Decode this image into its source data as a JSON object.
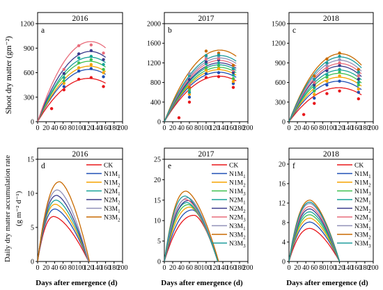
{
  "figure": {
    "top_ylabel": "Shoot dry matter (gm⁻²)",
    "bottom_ylabel_line1": "Daily dry matter accumulation rate",
    "bottom_ylabel_line2": "(g m⁻² d⁻¹)",
    "xlabel": "Days after emergence (d)"
  },
  "colors": {
    "CK": "#e8161a",
    "N1M1": "#1f4fb5",
    "N1M2": "#f5a300",
    "N1M3": "#3fbf4f",
    "N2M1": "#17a398",
    "N2M2": "#3a3a8c",
    "N2M3": "#e86b7a",
    "N3M1": "#9090b8",
    "N3M2": "#c86a00",
    "N3M3": "#1a9a9a"
  },
  "chart_data": [
    {
      "id": "a",
      "panel_letter": "a",
      "title": "2016",
      "type": "line",
      "xticks": [
        "0",
        "20",
        "40",
        "60",
        "80",
        "100",
        "120",
        "140",
        "160",
        "180",
        "200"
      ],
      "yticks": [
        "0",
        "300",
        "600",
        "900",
        "1200"
      ],
      "xlim": [
        0,
        200
      ],
      "ylim": [
        0,
        1200
      ],
      "series": [
        {
          "key": "CK",
          "peak_x": 120,
          "peak_y": 530,
          "x_end": 160
        },
        {
          "key": "N1M1",
          "peak_x": 122,
          "peak_y": 640,
          "x_end": 160
        },
        {
          "key": "N1M2",
          "peak_x": 122,
          "peak_y": 680,
          "x_end": 160
        },
        {
          "key": "N1M3",
          "peak_x": 122,
          "peak_y": 740,
          "x_end": 160
        },
        {
          "key": "N2M1",
          "peak_x": 124,
          "peak_y": 790,
          "x_end": 160
        },
        {
          "key": "N2M2",
          "peak_x": 124,
          "peak_y": 860,
          "x_end": 160
        },
        {
          "key": "N2M3",
          "peak_x": 125,
          "peak_y": 980,
          "x_end": 160
        }
      ],
      "points": [
        {
          "key": "CK",
          "x": 33,
          "y": 160
        },
        {
          "key": "CK",
          "x": 62,
          "y": 390
        },
        {
          "key": "CK",
          "x": 97,
          "y": 520
        },
        {
          "key": "CK",
          "x": 126,
          "y": 540
        },
        {
          "key": "CK",
          "x": 155,
          "y": 430
        },
        {
          "key": "N1M1",
          "x": 62,
          "y": 430
        },
        {
          "key": "N1M1",
          "x": 97,
          "y": 620
        },
        {
          "key": "N1M1",
          "x": 126,
          "y": 650
        },
        {
          "key": "N1M1",
          "x": 155,
          "y": 550
        },
        {
          "key": "N1M2",
          "x": 62,
          "y": 470
        },
        {
          "key": "N1M2",
          "x": 97,
          "y": 660
        },
        {
          "key": "N1M2",
          "x": 126,
          "y": 700
        },
        {
          "key": "N1M2",
          "x": 155,
          "y": 600
        },
        {
          "key": "N1M3",
          "x": 62,
          "y": 500
        },
        {
          "key": "N1M3",
          "x": 97,
          "y": 720
        },
        {
          "key": "N1M3",
          "x": 126,
          "y": 760
        },
        {
          "key": "N1M3",
          "x": 155,
          "y": 640
        },
        {
          "key": "N2M1",
          "x": 62,
          "y": 540
        },
        {
          "key": "N2M1",
          "x": 97,
          "y": 780
        },
        {
          "key": "N2M1",
          "x": 126,
          "y": 800
        },
        {
          "key": "N2M1",
          "x": 155,
          "y": 700
        },
        {
          "key": "N2M2",
          "x": 62,
          "y": 590
        },
        {
          "key": "N2M2",
          "x": 97,
          "y": 830
        },
        {
          "key": "N2M2",
          "x": 126,
          "y": 870
        },
        {
          "key": "N2M2",
          "x": 155,
          "y": 760
        },
        {
          "key": "N2M3",
          "x": 62,
          "y": 640
        },
        {
          "key": "N2M3",
          "x": 97,
          "y": 930
        },
        {
          "key": "N2M3",
          "x": 126,
          "y": 940
        },
        {
          "key": "N2M3",
          "x": 155,
          "y": 840
        }
      ]
    },
    {
      "id": "b",
      "panel_letter": "b",
      "title": "2017",
      "type": "line",
      "xticks": [
        "0",
        "20",
        "40",
        "60",
        "80",
        "100",
        "120",
        "140",
        "160",
        "180",
        "200"
      ],
      "yticks": [
        "0",
        "400",
        "800",
        "1200",
        "1600",
        "2000"
      ],
      "xlim": [
        0,
        200
      ],
      "ylim": [
        0,
        2000
      ],
      "series": [
        {
          "key": "CK",
          "peak_x": 130,
          "peak_y": 930,
          "x_end": 172
        },
        {
          "key": "N1M1",
          "peak_x": 130,
          "peak_y": 1010,
          "x_end": 172
        },
        {
          "key": "N1M2",
          "peak_x": 130,
          "peak_y": 1060,
          "x_end": 172
        },
        {
          "key": "N1M3",
          "peak_x": 131,
          "peak_y": 1110,
          "x_end": 172
        },
        {
          "key": "N2M1",
          "peak_x": 131,
          "peak_y": 1160,
          "x_end": 172
        },
        {
          "key": "N2M2",
          "peak_x": 132,
          "peak_y": 1200,
          "x_end": 172
        },
        {
          "key": "N2M3",
          "peak_x": 132,
          "peak_y": 1250,
          "x_end": 172
        },
        {
          "key": "N3M1",
          "peak_x": 133,
          "peak_y": 1300,
          "x_end": 172
        },
        {
          "key": "N3M2",
          "peak_x": 133,
          "peak_y": 1460,
          "x_end": 172
        },
        {
          "key": "N3M3",
          "peak_x": 133,
          "peak_y": 1350,
          "x_end": 172
        }
      ],
      "points": [
        {
          "key": "CK",
          "x": 35,
          "y": 80
        },
        {
          "key": "CK",
          "x": 60,
          "y": 400
        },
        {
          "key": "CK",
          "x": 100,
          "y": 900
        },
        {
          "key": "CK",
          "x": 130,
          "y": 920
        },
        {
          "key": "CK",
          "x": 165,
          "y": 700
        },
        {
          "key": "N1M1",
          "x": 60,
          "y": 500
        },
        {
          "key": "N1M1",
          "x": 100,
          "y": 980
        },
        {
          "key": "N1M1",
          "x": 130,
          "y": 1000
        },
        {
          "key": "N1M1",
          "x": 165,
          "y": 780
        },
        {
          "key": "N1M2",
          "x": 60,
          "y": 560
        },
        {
          "key": "N1M2",
          "x": 100,
          "y": 1050
        },
        {
          "key": "N1M2",
          "x": 130,
          "y": 1080
        },
        {
          "key": "N1M2",
          "x": 165,
          "y": 820
        },
        {
          "key": "N1M3",
          "x": 60,
          "y": 650
        },
        {
          "key": "N1M3",
          "x": 100,
          "y": 1100
        },
        {
          "key": "N1M3",
          "x": 130,
          "y": 1150
        },
        {
          "key": "N1M3",
          "x": 165,
          "y": 880
        },
        {
          "key": "N2M1",
          "x": 60,
          "y": 940
        },
        {
          "key": "N2M1",
          "x": 100,
          "y": 1180
        },
        {
          "key": "N2M1",
          "x": 130,
          "y": 1200
        },
        {
          "key": "N2M1",
          "x": 165,
          "y": 950
        },
        {
          "key": "N2M2",
          "x": 60,
          "y": 860
        },
        {
          "key": "N2M2",
          "x": 100,
          "y": 1220
        },
        {
          "key": "N2M2",
          "x": 130,
          "y": 1260
        },
        {
          "key": "N2M2",
          "x": 165,
          "y": 1000
        },
        {
          "key": "N2M3",
          "x": 60,
          "y": 760
        },
        {
          "key": "N2M3",
          "x": 100,
          "y": 1280
        },
        {
          "key": "N2M3",
          "x": 130,
          "y": 1290
        },
        {
          "key": "N2M3",
          "x": 165,
          "y": 1050
        },
        {
          "key": "N3M1",
          "x": 60,
          "y": 980
        },
        {
          "key": "N3M1",
          "x": 100,
          "y": 1320
        },
        {
          "key": "N3M1",
          "x": 130,
          "y": 1330
        },
        {
          "key": "N3M1",
          "x": 165,
          "y": 1100
        },
        {
          "key": "N3M2",
          "x": 60,
          "y": 700
        },
        {
          "key": "N3M2",
          "x": 100,
          "y": 1440
        },
        {
          "key": "N3M2",
          "x": 130,
          "y": 1400
        },
        {
          "key": "N3M2",
          "x": 165,
          "y": 1150
        },
        {
          "key": "N3M3",
          "x": 60,
          "y": 600
        },
        {
          "key": "N3M3",
          "x": 100,
          "y": 1350
        },
        {
          "key": "N3M3",
          "x": 130,
          "y": 1360
        },
        {
          "key": "N3M3",
          "x": 165,
          "y": 1080
        }
      ]
    },
    {
      "id": "c",
      "panel_letter": "c",
      "title": "2018",
      "type": "line",
      "xticks": [
        "0",
        "20",
        "40",
        "60",
        "80",
        "100",
        "120",
        "140",
        "160",
        "180",
        "200"
      ],
      "yticks": [
        "0",
        "300",
        "600",
        "900",
        "1200",
        "1500"
      ],
      "xlim": [
        0,
        200
      ],
      "ylim": [
        0,
        1500
      ],
      "series": [
        {
          "key": "CK",
          "peak_x": 118,
          "peak_y": 520,
          "x_end": 172
        },
        {
          "key": "N1M1",
          "peak_x": 118,
          "peak_y": 620,
          "x_end": 172
        },
        {
          "key": "N1M2",
          "peak_x": 119,
          "peak_y": 680,
          "x_end": 172
        },
        {
          "key": "N1M3",
          "peak_x": 119,
          "peak_y": 740,
          "x_end": 172
        },
        {
          "key": "N2M1",
          "peak_x": 120,
          "peak_y": 790,
          "x_end": 172
        },
        {
          "key": "N2M2",
          "peak_x": 120,
          "peak_y": 850,
          "x_end": 172
        },
        {
          "key": "N2M3",
          "peak_x": 121,
          "peak_y": 890,
          "x_end": 172
        },
        {
          "key": "N3M1",
          "peak_x": 121,
          "peak_y": 940,
          "x_end": 172
        },
        {
          "key": "N3M2",
          "peak_x": 122,
          "peak_y": 1040,
          "x_end": 172
        },
        {
          "key": "N3M3",
          "peak_x": 122,
          "peak_y": 990,
          "x_end": 172
        }
      ],
      "points": [
        {
          "key": "CK",
          "x": 35,
          "y": 110
        },
        {
          "key": "CK",
          "x": 60,
          "y": 280
        },
        {
          "key": "CK",
          "x": 90,
          "y": 430
        },
        {
          "key": "CK",
          "x": 120,
          "y": 470
        },
        {
          "key": "CK",
          "x": 165,
          "y": 350
        },
        {
          "key": "N1M1",
          "x": 60,
          "y": 360
        },
        {
          "key": "N1M1",
          "x": 90,
          "y": 560
        },
        {
          "key": "N1M1",
          "x": 120,
          "y": 620
        },
        {
          "key": "N1M1",
          "x": 165,
          "y": 450
        },
        {
          "key": "N1M2",
          "x": 60,
          "y": 420
        },
        {
          "key": "N1M2",
          "x": 90,
          "y": 620
        },
        {
          "key": "N1M2",
          "x": 120,
          "y": 700
        },
        {
          "key": "N1M2",
          "x": 165,
          "y": 500
        },
        {
          "key": "N1M3",
          "x": 60,
          "y": 470
        },
        {
          "key": "N1M3",
          "x": 90,
          "y": 680
        },
        {
          "key": "N1M3",
          "x": 120,
          "y": 760
        },
        {
          "key": "N1M3",
          "x": 165,
          "y": 560
        },
        {
          "key": "N2M1",
          "x": 60,
          "y": 520
        },
        {
          "key": "N2M1",
          "x": 90,
          "y": 720
        },
        {
          "key": "N2M1",
          "x": 120,
          "y": 800
        },
        {
          "key": "N2M1",
          "x": 165,
          "y": 600
        },
        {
          "key": "N2M2",
          "x": 60,
          "y": 560
        },
        {
          "key": "N2M2",
          "x": 90,
          "y": 780
        },
        {
          "key": "N2M2",
          "x": 120,
          "y": 860
        },
        {
          "key": "N2M2",
          "x": 165,
          "y": 650
        },
        {
          "key": "N2M3",
          "x": 60,
          "y": 600
        },
        {
          "key": "N2M3",
          "x": 90,
          "y": 820
        },
        {
          "key": "N2M3",
          "x": 120,
          "y": 900
        },
        {
          "key": "N2M3",
          "x": 165,
          "y": 700
        },
        {
          "key": "N3M1",
          "x": 60,
          "y": 640
        },
        {
          "key": "N3M1",
          "x": 90,
          "y": 860
        },
        {
          "key": "N3M1",
          "x": 120,
          "y": 950
        },
        {
          "key": "N3M1",
          "x": 165,
          "y": 740
        },
        {
          "key": "N3M2",
          "x": 60,
          "y": 700
        },
        {
          "key": "N3M2",
          "x": 90,
          "y": 960
        },
        {
          "key": "N3M2",
          "x": 120,
          "y": 1050
        },
        {
          "key": "N3M2",
          "x": 165,
          "y": 800
        },
        {
          "key": "N3M3",
          "x": 60,
          "y": 650
        },
        {
          "key": "N3M3",
          "x": 90,
          "y": 900
        },
        {
          "key": "N3M3",
          "x": 120,
          "y": 1000
        },
        {
          "key": "N3M3",
          "x": 165,
          "y": 760
        }
      ]
    },
    {
      "id": "d",
      "panel_letter": "d",
      "title": "2016",
      "type": "line",
      "xticks": [
        "0",
        "20",
        "40",
        "60",
        "80",
        "100",
        "120",
        "140",
        "160",
        "180",
        "200"
      ],
      "yticks": [
        "0",
        "5",
        "10",
        "15"
      ],
      "xlim": [
        0,
        200
      ],
      "ylim": [
        0,
        15
      ],
      "legend": [
        "CK",
        "N1M1",
        "N1M2",
        "N2M1",
        "N2M2",
        "N3M1",
        "N3M2"
      ],
      "series": [
        {
          "key": "CK",
          "peak_x": 38,
          "peak_y": 6.6,
          "x_end": 120
        },
        {
          "key": "N1M1",
          "peak_x": 41,
          "peak_y": 7.7,
          "x_end": 120
        },
        {
          "key": "N1M2",
          "peak_x": 42,
          "peak_y": 8.4,
          "x_end": 120
        },
        {
          "key": "N2M1",
          "peak_x": 44,
          "peak_y": 9.0,
          "x_end": 120
        },
        {
          "key": "N2M2",
          "peak_x": 45,
          "peak_y": 9.7,
          "x_end": 120
        },
        {
          "key": "N3M1",
          "peak_x": 47,
          "peak_y": 10.5,
          "x_end": 120
        },
        {
          "key": "N3M2",
          "peak_x": 52,
          "peak_y": 11.7,
          "x_end": 122
        }
      ]
    },
    {
      "id": "e",
      "panel_letter": "e",
      "title": "2017",
      "type": "line",
      "xticks": [
        "0",
        "20",
        "40",
        "60",
        "80",
        "100",
        "120",
        "140",
        "160",
        "180",
        "200"
      ],
      "yticks": [
        "0",
        "5",
        "10",
        "15",
        "20",
        "25"
      ],
      "xlim": [
        0,
        200
      ],
      "ylim": [
        0,
        25
      ],
      "legend": [
        "CK",
        "N1M1",
        "N1M2",
        "N1M3",
        "N2M1",
        "N2M2",
        "N2M3",
        "N3M1",
        "N3M2",
        "N3M3"
      ],
      "series": [
        {
          "key": "CK",
          "peak_x": 72,
          "peak_y": 11.3,
          "x_end": 128
        },
        {
          "key": "N1M1",
          "peak_x": 68,
          "peak_y": 12.6,
          "x_end": 128
        },
        {
          "key": "N1M2",
          "peak_x": 62,
          "peak_y": 13.3,
          "x_end": 128
        },
        {
          "key": "N1M3",
          "peak_x": 58,
          "peak_y": 13.9,
          "x_end": 128
        },
        {
          "key": "N2M1",
          "peak_x": 55,
          "peak_y": 14.4,
          "x_end": 128
        },
        {
          "key": "N2M2",
          "peak_x": 58,
          "peak_y": 14.9,
          "x_end": 128
        },
        {
          "key": "N2M3",
          "peak_x": 52,
          "peak_y": 15.2,
          "x_end": 128
        },
        {
          "key": "N3M1",
          "peak_x": 57,
          "peak_y": 15.6,
          "x_end": 128
        },
        {
          "key": "N3M2",
          "peak_x": 52,
          "peak_y": 17.2,
          "x_end": 130
        },
        {
          "key": "N3M3",
          "peak_x": 50,
          "peak_y": 16.0,
          "x_end": 128
        }
      ]
    },
    {
      "id": "f",
      "panel_letter": "f",
      "title": "2018",
      "type": "line",
      "xticks": [
        "0",
        "20",
        "40",
        "60",
        "80",
        "100",
        "120",
        "140",
        "160",
        "180",
        "200"
      ],
      "yticks": [
        "0",
        "4",
        "8",
        "12",
        "16",
        "20"
      ],
      "xlim": [
        0,
        200
      ],
      "ylim": [
        0,
        21
      ],
      "legend": [
        "CK",
        "N1M1",
        "N1M2",
        "N1M3",
        "N2M1",
        "N2M2",
        "N2M3",
        "N3M1",
        "N3M2",
        "N3M3"
      ],
      "series": [
        {
          "key": "CK",
          "peak_x": 50,
          "peak_y": 6.8,
          "x_end": 120
        },
        {
          "key": "N1M1",
          "peak_x": 50,
          "peak_y": 8.1,
          "x_end": 120
        },
        {
          "key": "N1M2",
          "peak_x": 50,
          "peak_y": 8.9,
          "x_end": 120
        },
        {
          "key": "N1M3",
          "peak_x": 50,
          "peak_y": 9.6,
          "x_end": 120
        },
        {
          "key": "N2M1",
          "peak_x": 50,
          "peak_y": 10.2,
          "x_end": 120
        },
        {
          "key": "N2M2",
          "peak_x": 50,
          "peak_y": 10.8,
          "x_end": 120
        },
        {
          "key": "N2M3",
          "peak_x": 50,
          "peak_y": 11.3,
          "x_end": 120
        },
        {
          "key": "N3M1",
          "peak_x": 50,
          "peak_y": 11.9,
          "x_end": 120
        },
        {
          "key": "N3M2",
          "peak_x": 50,
          "peak_y": 12.6,
          "x_end": 120
        },
        {
          "key": "N3M3",
          "peak_x": 50,
          "peak_y": 12.2,
          "x_end": 120
        }
      ]
    }
  ]
}
